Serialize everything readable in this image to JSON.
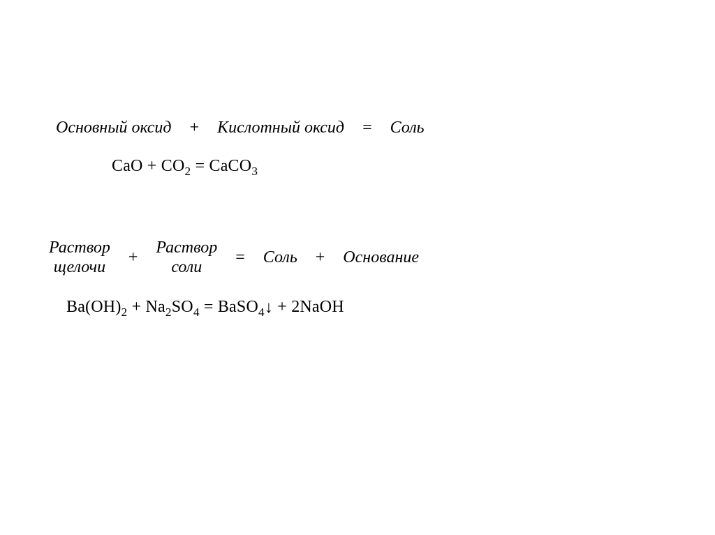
{
  "colors": {
    "text": "#000000",
    "background": "#ffffff"
  },
  "typography": {
    "family": "Times New Roman",
    "base_size_pt": 18,
    "italic_terms": true
  },
  "wordeq1": {
    "lhs1": "Основный оксид",
    "op1": "+",
    "lhs2": "Кислотный оксид",
    "eq": "=",
    "rhs": "Соль"
  },
  "chemeq1": {
    "p1": "CaO",
    "op1": "+",
    "p2": "CO",
    "p2_sub": "2",
    "eq": "=",
    "p3a": "CaCO",
    "p3_sub": "3"
  },
  "wordeq2": {
    "lhs1_line1": "Раствор",
    "lhs1_line2": "щелочи",
    "op1": "+",
    "lhs2_line1": "Раствор",
    "lhs2_line2": "соли",
    "eq": "=",
    "rhs1": "Соль",
    "op2": "+",
    "rhs2": "Основание"
  },
  "chemeq2": {
    "p1a": "Ba(OH)",
    "p1_sub": "2",
    "op1": "+",
    "p2a": "Na",
    "p2_sub1": "2",
    "p2b": "SO",
    "p2_sub2": "4",
    "eq": "=",
    "p3a": "BaSO",
    "p3_sub": "4",
    "arrow": "↓",
    "op2": "+",
    "p4": "2NaOH"
  }
}
